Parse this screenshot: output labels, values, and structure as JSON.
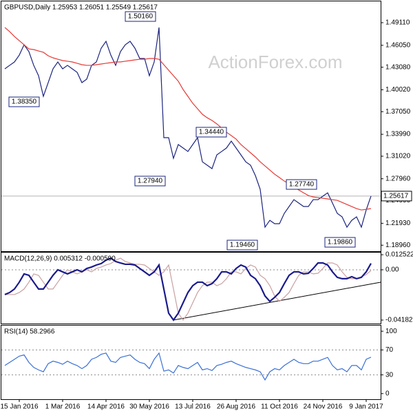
{
  "chart_data": [
    {
      "type": "line",
      "title": "GBPUSD,Daily  1.25953 1.26051 1.25549 1.25617",
      "watermark": "ActionForex.com",
      "categories": [
        null,
        null,
        null,
        "15 Jan 2016",
        null,
        null,
        null,
        null,
        null,
        null,
        null,
        null,
        "1 Mar 2016",
        null,
        null,
        null,
        null,
        null,
        null,
        null,
        null,
        "14 Apr 2016",
        null,
        null,
        null,
        null,
        null,
        null,
        null,
        null,
        "30 May 2016",
        null,
        null,
        null,
        null,
        null,
        null,
        null,
        null,
        "13 Jul 2016",
        null,
        null,
        null,
        null,
        null,
        null,
        null,
        null,
        "26 Aug 2016",
        null,
        null,
        null,
        null,
        null,
        null,
        null,
        null,
        "11 Oct 2016",
        null,
        null,
        null,
        null,
        null,
        null,
        null,
        null,
        "24 Nov 2016",
        null,
        null,
        null,
        null,
        null,
        null,
        null,
        null,
        "9 Jan 2017",
        null
      ],
      "series": [
        {
          "color": "#1a237e",
          "values": [
            1.4286,
            1.4333,
            1.4379,
            1.4472,
            1.4612,
            1.4519,
            1.4333,
            1.4193,
            1.3913,
            1.4099,
            1.4286,
            1.4379,
            1.4286,
            1.4333,
            1.4286,
            1.4239,
            1.4099,
            1.4146,
            1.4333,
            1.4379,
            1.4566,
            1.4659,
            1.4472,
            1.4333,
            1.4519,
            1.4612,
            1.4659,
            1.4566,
            1.4426,
            1.4426,
            1.4193,
            1.4379,
            1.4846,
            1.3353,
            1.3353,
            1.3073,
            1.326,
            1.3213,
            1.3166,
            1.326,
            1.3353,
            1.3026,
            1.298,
            1.2933,
            1.312,
            1.3166,
            1.3213,
            1.3306,
            1.3213,
            1.312,
            1.3026,
            1.298,
            1.284,
            1.2653,
            1.214,
            1.2233,
            1.2187,
            1.2187,
            1.2327,
            1.242,
            1.2513,
            1.2467,
            1.242,
            1.242,
            1.2513,
            1.2513,
            1.256,
            1.2606,
            1.2467,
            1.2327,
            1.228,
            1.214,
            1.2233,
            1.228,
            1.214,
            1.2373,
            1.2562
          ]
        },
        {
          "color": "#e53935",
          "values": [
            1.4846,
            1.479,
            1.4724,
            1.4668,
            1.4612,
            1.4556,
            1.4547,
            1.4528,
            1.451,
            1.4463,
            1.4435,
            1.4416,
            1.4398,
            1.4389,
            1.4379,
            1.4361,
            1.4342,
            1.4333,
            1.4333,
            1.4342,
            1.4351,
            1.4361,
            1.437,
            1.4379,
            1.4379,
            1.4389,
            1.4398,
            1.4407,
            1.4416,
            1.4416,
            1.4426,
            1.4426,
            1.4416,
            1.4342,
            1.4267,
            1.4193,
            1.4118,
            1.4006,
            1.3913,
            1.3819,
            1.3745,
            1.367,
            1.3623,
            1.3586,
            1.354,
            1.3483,
            1.3427,
            1.3381,
            1.3334,
            1.326,
            1.3204,
            1.3148,
            1.3092,
            1.3026,
            1.297,
            1.2914,
            1.2858,
            1.2812,
            1.2765,
            1.2728,
            1.2681,
            1.2644,
            1.2606,
            1.2569,
            1.255,
            1.2541,
            1.2532,
            1.2523,
            1.2513,
            1.2504,
            1.2476,
            1.2448,
            1.242,
            1.2392,
            1.2373,
            1.2382,
            1.2392
          ]
        }
      ],
      "ylim": [
        1.1814,
        1.52
      ],
      "yticks": [
        {
          "value": 1.4911,
          "label": "1.49110"
        },
        {
          "value": 1.4605,
          "label": "1.46050"
        },
        {
          "value": 1.4308,
          "label": "1.43080"
        },
        {
          "value": 1.4002,
          "label": "1.40020"
        },
        {
          "value": 1.3705,
          "label": "1.37050"
        },
        {
          "value": 1.3399,
          "label": "1.33990"
        },
        {
          "value": 1.3102,
          "label": "1.31020"
        },
        {
          "value": 1.2796,
          "label": "1.27960"
        },
        {
          "value": 1.2499,
          "label": "1.24990"
        },
        {
          "value": 1.2193,
          "label": "1.21930"
        },
        {
          "value": 1.1896,
          "label": "1.18960"
        }
      ],
      "last_price": {
        "value": 1.25617,
        "label": "1.25617"
      },
      "annotations": [
        "1.50160",
        "1.38350",
        "1.27940",
        "1.34440",
        "1.27740",
        "1.19460",
        "1.19860"
      ],
      "grid": false
    },
    {
      "type": "line",
      "title": "MACD(12,26,9) 0.005312 -0.000590",
      "series": [
        {
          "color": "#c9a0a0",
          "values": [
            -0.0206,
            -0.0206,
            -0.0206,
            -0.0189,
            -0.016,
            -0.0103,
            -0.0034,
            -0.0046,
            -0.0103,
            -0.016,
            -0.016,
            -0.0103,
            -0.0046,
            0,
            -0.0017,
            -0.0034,
            -0.0017,
            0,
            -0.0017,
            0.0011,
            0.0023,
            0.004,
            0.0052,
            0.008,
            0.0097,
            0.0069,
            0.0057,
            0.0046,
            0.0046,
            0.004,
            0.0011,
            -0.0017,
            -0.0046,
            -0.0017,
            0.004,
            -0.016,
            -0.0361,
            -0.0418,
            -0.0361,
            -0.0275,
            -0.0189,
            -0.0132,
            -0.0103,
            -0.0103,
            -0.0132,
            -0.0115,
            -0.0074,
            -0.0017,
            -0.0017,
            -0.0034,
            0.0011,
            0.004,
            0.0023,
            -0.0046,
            -0.0074,
            -0.0132,
            -0.0218,
            -0.0263,
            -0.0229,
            -0.0189,
            -0.0115,
            -0.0046,
            -0.0017,
            -0.0017,
            -0.0034,
            -0.0029,
            0.0011,
            0.0057,
            0.0057,
            0.004,
            -0.0017,
            -0.0063,
            -0.0074,
            -0.0074,
            -0.0057,
            -0.004,
            -0.0006
          ]
        },
        {
          "color": "#1a1a8c",
          "values": [
            -0.0206,
            -0.0189,
            -0.016,
            -0.0103,
            -0.0034,
            -0.0046,
            -0.0103,
            -0.016,
            -0.016,
            -0.0103,
            -0.0046,
            0,
            -0.0017,
            -0.0034,
            -0.0017,
            0,
            -0.0017,
            0.0011,
            0.0023,
            0.004,
            0.0052,
            0.008,
            0.0097,
            0.0069,
            0.0057,
            0.0046,
            0.0046,
            0.004,
            0.0011,
            -0.0017,
            -0.0046,
            -0.0017,
            0.004,
            -0.016,
            -0.0361,
            -0.0418,
            -0.0361,
            -0.0275,
            -0.0189,
            -0.0132,
            -0.0103,
            -0.0103,
            -0.0132,
            -0.0115,
            -0.0074,
            -0.0017,
            -0.0017,
            -0.0034,
            0.0011,
            0.004,
            0.0023,
            -0.0046,
            -0.0074,
            -0.0132,
            -0.0218,
            -0.0263,
            -0.0229,
            -0.0189,
            -0.0115,
            -0.0046,
            -0.0017,
            -0.0017,
            -0.0034,
            -0.0029,
            0.0011,
            0.0057,
            0.0057,
            0.004,
            -0.0017,
            -0.0063,
            -0.0074,
            -0.0074,
            -0.0057,
            -0.0074,
            -0.0063,
            -0.0017,
            0.0053
          ]
        }
      ],
      "ylim": [
        -0.0447,
        0.0143
      ],
      "yticks": [
        0.012522,
        {
          "value": 0,
          "label": "0.00"
        },
        -0.041823
      ],
      "grid": true
    },
    {
      "type": "line",
      "title": "RSI(14) 58.2966",
      "series": [
        {
          "color": "#3a6fd8",
          "values": [
            45,
            50,
            55,
            60,
            62,
            50,
            42,
            38,
            35,
            48,
            52,
            50,
            47,
            52,
            48,
            45,
            40,
            45,
            55,
            58,
            63,
            65,
            52,
            50,
            58,
            60,
            62,
            55,
            50,
            48,
            40,
            55,
            65,
            36,
            38,
            33,
            45,
            42,
            40,
            45,
            50,
            38,
            40,
            37,
            45,
            47,
            50,
            52,
            48,
            45,
            42,
            40,
            38,
            35,
            22,
            35,
            40,
            38,
            45,
            50,
            55,
            50,
            48,
            48,
            52,
            52,
            55,
            58,
            45,
            38,
            40,
            35,
            45,
            45,
            38,
            55,
            58.3
          ]
        }
      ],
      "ylim": [
        -9,
        109
      ],
      "yticks": [
        100,
        70,
        30,
        0
      ],
      "grid": true
    }
  ]
}
